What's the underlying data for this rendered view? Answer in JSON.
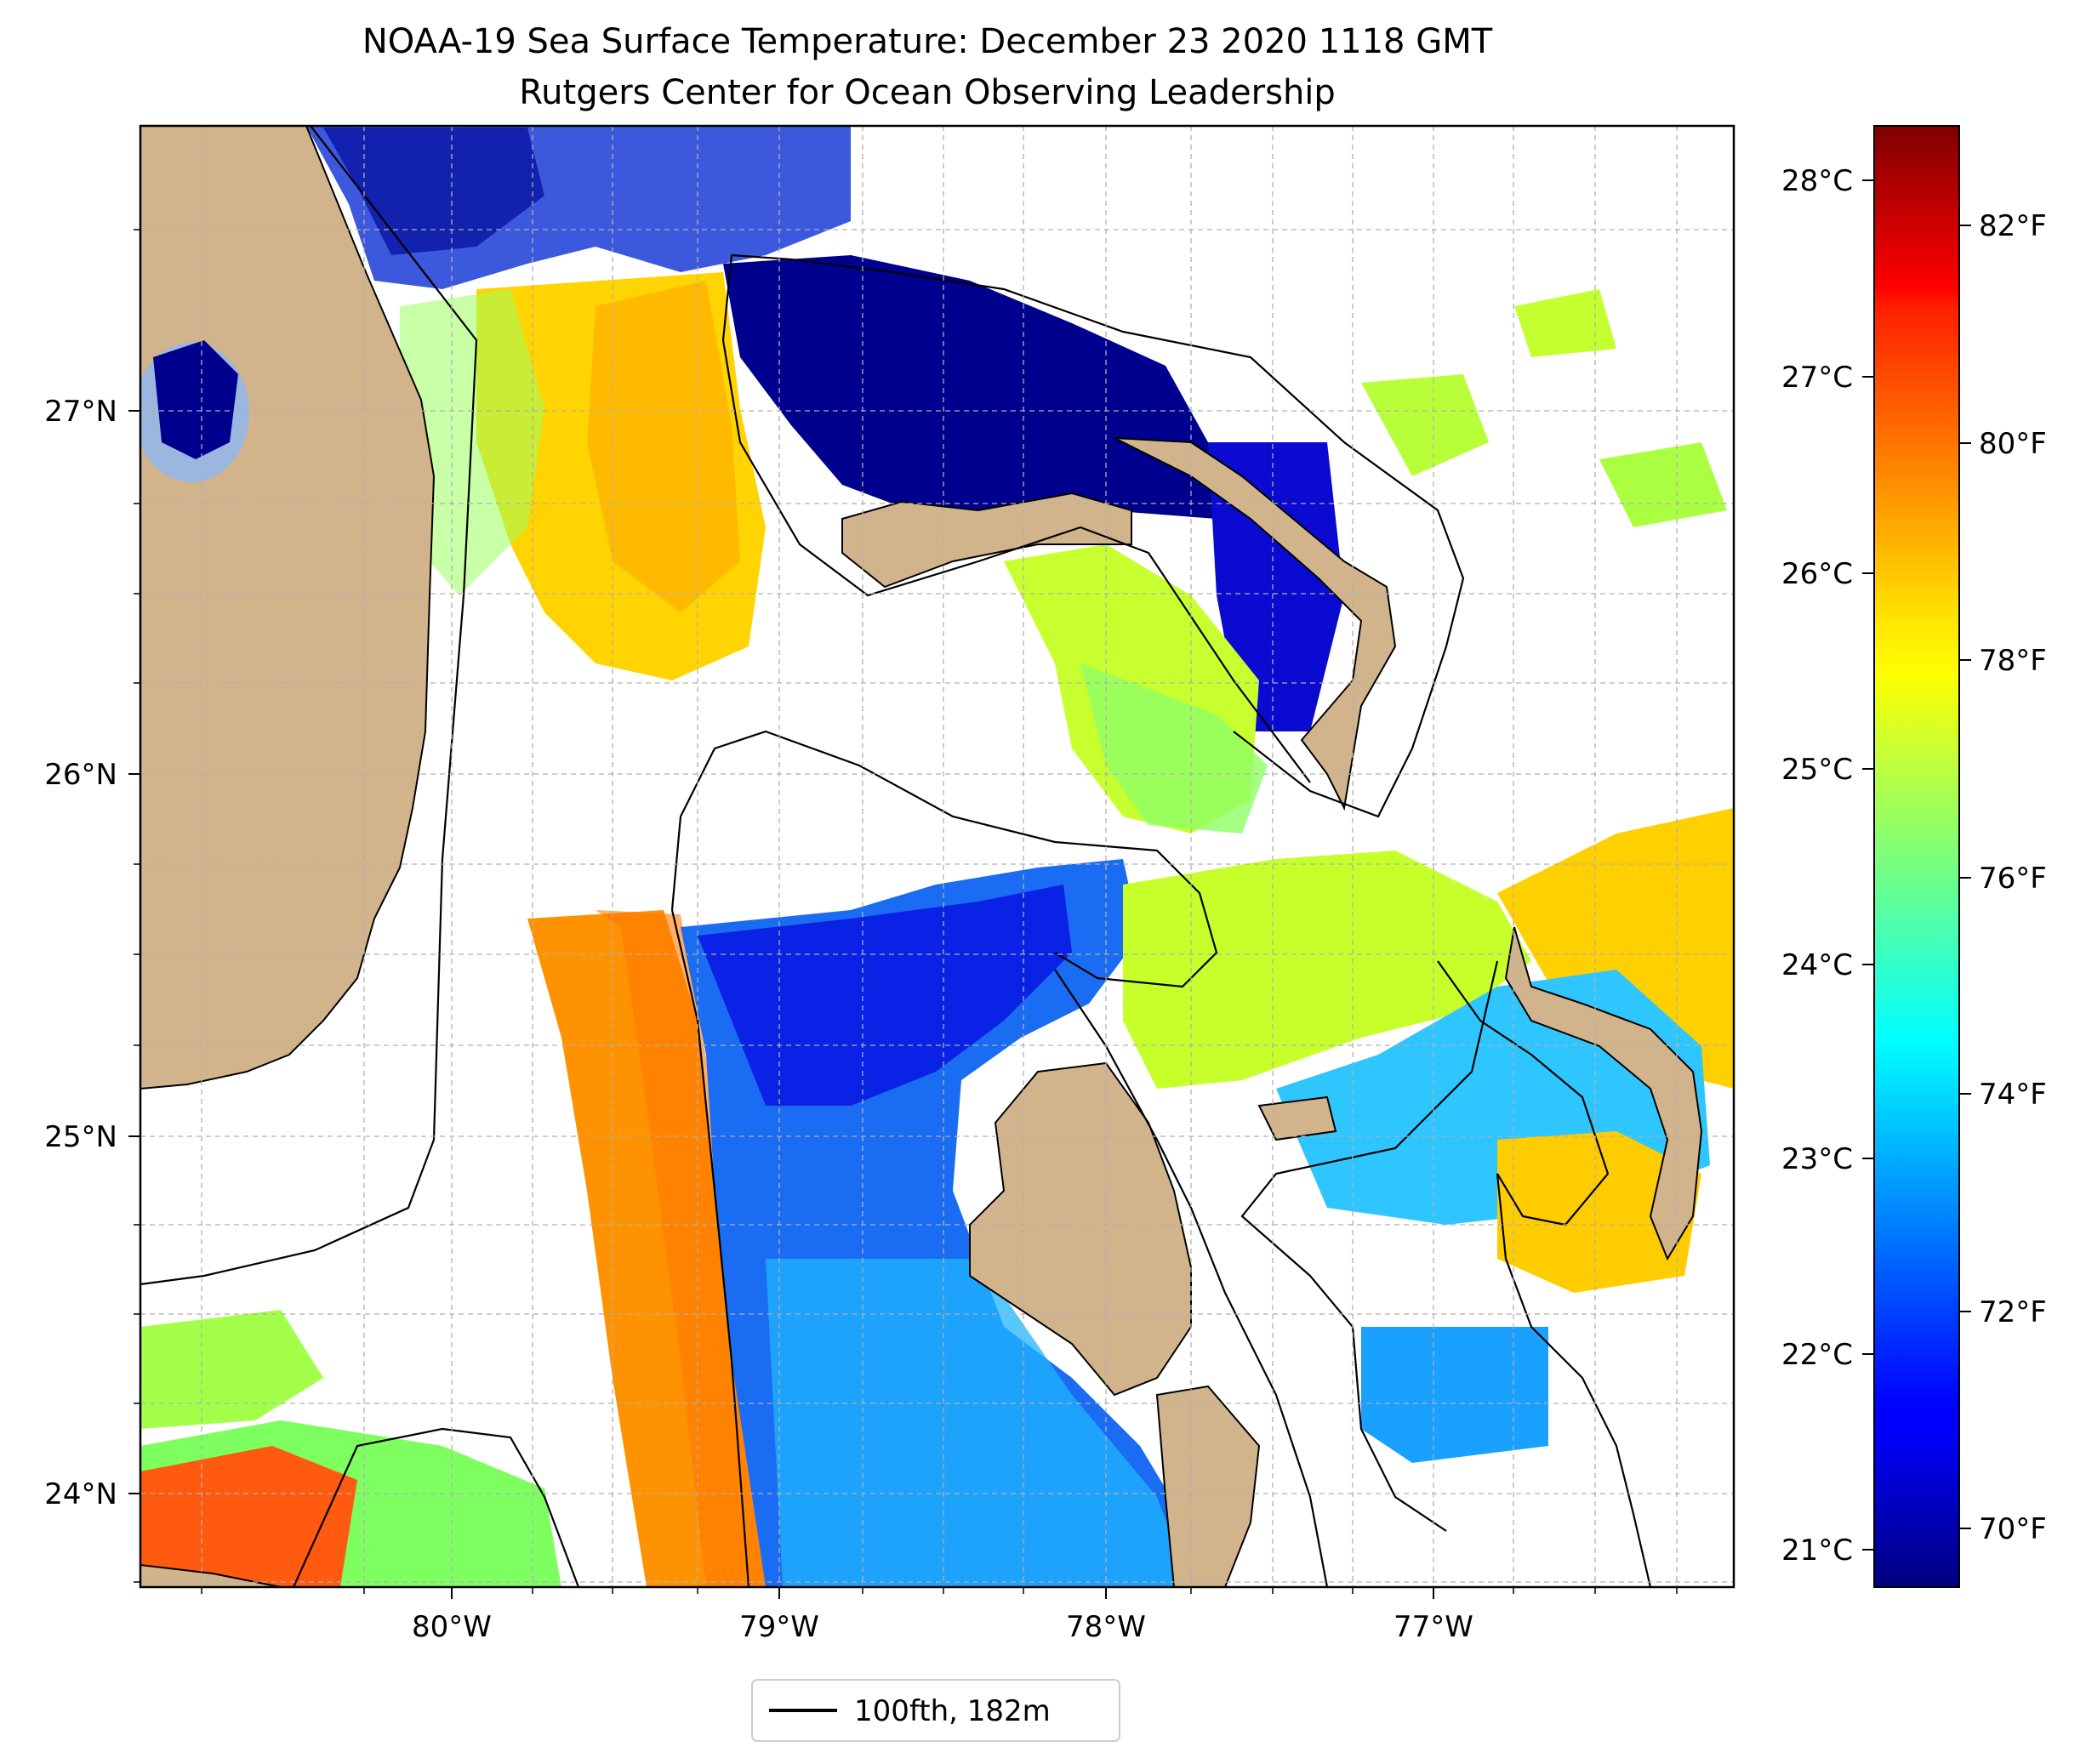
{
  "title": "NOAA-19 Sea Surface Temperature: December 23 2020 1118 GMT",
  "subtitle": "Rutgers Center for Ocean Observing Leadership",
  "axes": {
    "x_ticks": [
      "80°W",
      "79°W",
      "78°W",
      "77°W"
    ],
    "y_ticks": [
      "27°N",
      "26°N",
      "25°N",
      "24°N"
    ]
  },
  "colorbar": {
    "celsius_ticks": [
      "28°C",
      "27°C",
      "26°C",
      "25°C",
      "24°C",
      "23°C",
      "22°C",
      "21°C"
    ],
    "fahrenheit_ticks": [
      "82°F",
      "80°F",
      "78°F",
      "76°F",
      "74°F",
      "72°F",
      "70°F"
    ],
    "colormap": "jet"
  },
  "legend": {
    "label": "100fth, 182m",
    "placement": "bottom-center"
  },
  "colors": {
    "land": "#d2b48c",
    "lake": "#9bb7e0",
    "grid": "#b0b0b0",
    "missing_data": "#ffffff"
  }
}
